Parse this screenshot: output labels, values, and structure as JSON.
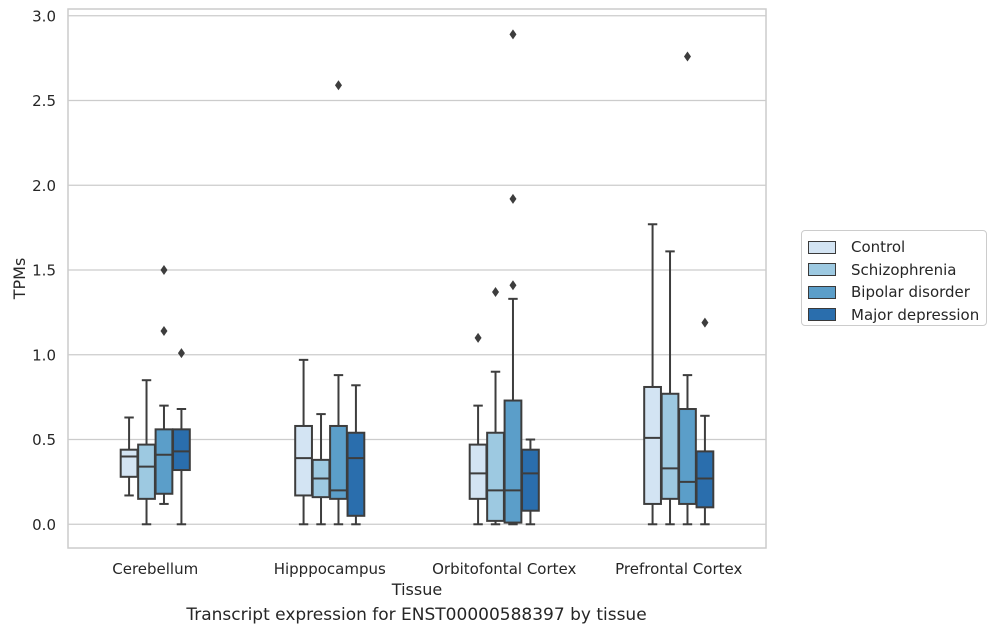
{
  "chart_data": {
    "type": "boxplot",
    "xlabel": "Tissue",
    "ylabel": "TPMs",
    "caption": "Transcript expression for ENST00000588397 by tissue",
    "ylim": [
      -0.14,
      3.04
    ],
    "yticks": [
      "0.0",
      "0.5",
      "1.0",
      "1.5",
      "2.0",
      "2.5",
      "3.0"
    ],
    "grid": "horizontal",
    "legend_position": "right",
    "categories": [
      "Cerebellum",
      "Hipppocampus",
      "Orbitofontal Cortex",
      "Prefrontal Cortex"
    ],
    "series": [
      {
        "name": "Control",
        "color": "#d3e4f3",
        "boxes": [
          {
            "whislo": 0.17,
            "q1": 0.28,
            "med": 0.4,
            "q3": 0.44,
            "whishi": 0.63,
            "fliers": []
          },
          {
            "whislo": 0.0,
            "q1": 0.17,
            "med": 0.39,
            "q3": 0.58,
            "whishi": 0.97,
            "fliers": []
          },
          {
            "whislo": 0.0,
            "q1": 0.15,
            "med": 0.3,
            "q3": 0.47,
            "whishi": 0.7,
            "fliers": [
              1.1
            ]
          },
          {
            "whislo": 0.0,
            "q1": 0.12,
            "med": 0.51,
            "q3": 0.81,
            "whishi": 1.77,
            "fliers": []
          }
        ]
      },
      {
        "name": "Schizophrenia",
        "color": "#9dc9e1",
        "boxes": [
          {
            "whislo": 0.0,
            "q1": 0.15,
            "med": 0.34,
            "q3": 0.47,
            "whishi": 0.85,
            "fliers": []
          },
          {
            "whislo": 0.0,
            "q1": 0.16,
            "med": 0.27,
            "q3": 0.38,
            "whishi": 0.65,
            "fliers": []
          },
          {
            "whislo": 0.0,
            "q1": 0.02,
            "med": 0.2,
            "q3": 0.54,
            "whishi": 0.9,
            "fliers": [
              1.37
            ]
          },
          {
            "whislo": 0.0,
            "q1": 0.15,
            "med": 0.33,
            "q3": 0.77,
            "whishi": 1.61,
            "fliers": []
          }
        ]
      },
      {
        "name": "Bipolar disorder",
        "color": "#5b9ec9",
        "boxes": [
          {
            "whislo": 0.12,
            "q1": 0.18,
            "med": 0.41,
            "q3": 0.56,
            "whishi": 0.7,
            "fliers": [
              1.14,
              1.5
            ]
          },
          {
            "whislo": 0.0,
            "q1": 0.15,
            "med": 0.2,
            "q3": 0.58,
            "whishi": 0.88,
            "fliers": [
              2.59
            ]
          },
          {
            "whislo": 0.0,
            "q1": 0.01,
            "med": 0.2,
            "q3": 0.73,
            "whishi": 1.33,
            "fliers": [
              1.41,
              1.92,
              2.89
            ]
          },
          {
            "whislo": 0.0,
            "q1": 0.12,
            "med": 0.25,
            "q3": 0.68,
            "whishi": 0.88,
            "fliers": [
              2.76
            ]
          }
        ]
      },
      {
        "name": "Major depression",
        "color": "#2a6ead",
        "boxes": [
          {
            "whislo": 0.0,
            "q1": 0.32,
            "med": 0.43,
            "q3": 0.56,
            "whishi": 0.68,
            "fliers": [
              1.01
            ]
          },
          {
            "whislo": 0.0,
            "q1": 0.05,
            "med": 0.39,
            "q3": 0.54,
            "whishi": 0.82,
            "fliers": []
          },
          {
            "whislo": 0.0,
            "q1": 0.08,
            "med": 0.3,
            "q3": 0.44,
            "whishi": 0.5,
            "fliers": []
          },
          {
            "whislo": 0.0,
            "q1": 0.1,
            "med": 0.27,
            "q3": 0.43,
            "whishi": 0.64,
            "fliers": [
              1.19
            ]
          }
        ]
      }
    ]
  }
}
